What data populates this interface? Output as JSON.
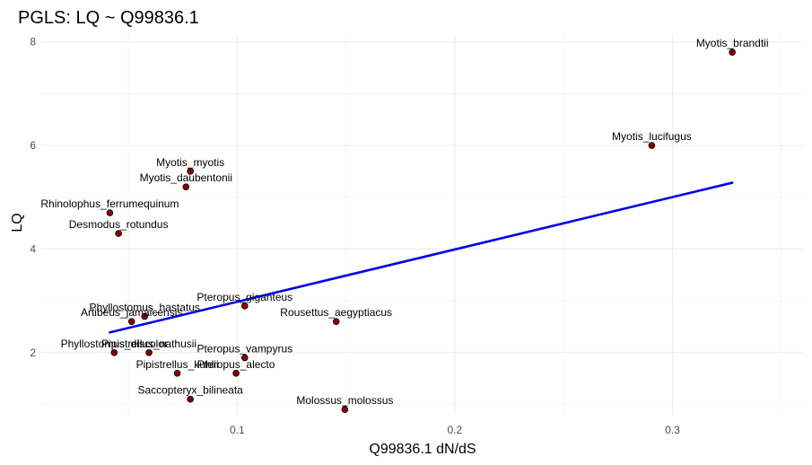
{
  "chart_data": {
    "type": "scatter",
    "title": "PGLS: LQ ~ Q99836.1",
    "xlabel": "Q99836.1 dN/dS",
    "ylabel": "LQ",
    "xlim": [
      0.01,
      0.36
    ],
    "ylim": [
      0.8,
      8.15
    ],
    "x_ticks": [
      0.1,
      0.2,
      0.3
    ],
    "x_tick_labels": [
      "0.1",
      "0.2",
      "0.3"
    ],
    "y_ticks": [
      2,
      4,
      6,
      8
    ],
    "y_tick_labels": [
      "2",
      "4",
      "6",
      "8"
    ],
    "grid": true,
    "point_color": "#8b0000",
    "line_color": "#0000ee",
    "fit_line": {
      "x": [
        0.0415,
        0.3275
      ],
      "y": [
        2.39,
        5.28
      ]
    },
    "points": [
      {
        "label": "Myotis_brandtii",
        "x": 0.3275,
        "y": 7.8
      },
      {
        "label": "Myotis_lucifugus",
        "x": 0.2905,
        "y": 6.0
      },
      {
        "label": "Myotis_myotis",
        "x": 0.0785,
        "y": 5.5
      },
      {
        "label": "Myotis_daubentonii",
        "x": 0.0765,
        "y": 5.2
      },
      {
        "label": "Rhinolophus_ferrumequinum",
        "x": 0.0415,
        "y": 4.7
      },
      {
        "label": "Desmodus_rotundus",
        "x": 0.0455,
        "y": 4.3
      },
      {
        "label": "Pteropus_giganteus",
        "x": 0.1035,
        "y": 2.9
      },
      {
        "label": "Phyllostomus_hastatus",
        "x": 0.0575,
        "y": 2.7
      },
      {
        "label": "Rousettus_aegyptiacus",
        "x": 0.1455,
        "y": 2.6
      },
      {
        "label": "Artibeus_jamaicensis",
        "x": 0.0515,
        "y": 2.6
      },
      {
        "label": "Phyllostomus_discolor",
        "x": 0.0435,
        "y": 2.0
      },
      {
        "label": "Pipistrellus_nathusii",
        "x": 0.0595,
        "y": 2.0
      },
      {
        "label": "Pteropus_vampyrus",
        "x": 0.1035,
        "y": 1.9
      },
      {
        "label": "Pipistrellus_kuhlii",
        "x": 0.0725,
        "y": 1.6
      },
      {
        "label": "Pteropus_alecto",
        "x": 0.0995,
        "y": 1.6
      },
      {
        "label": "Saccopteryx_bilineata",
        "x": 0.0785,
        "y": 1.1
      },
      {
        "label": "Molossus_molossus",
        "x": 0.1495,
        "y": 0.9
      }
    ]
  }
}
